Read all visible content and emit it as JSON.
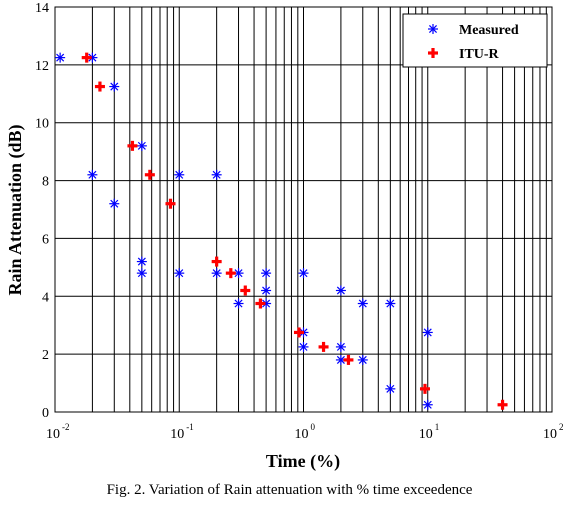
{
  "chart_data": {
    "type": "scatter",
    "xlabel": "Time (%)",
    "ylabel": "Rain Attenuation (dB)",
    "xscale": "log",
    "xlim": [
      0.01,
      100
    ],
    "ylim": [
      0,
      14
    ],
    "grid": true,
    "legend_position": "top-right",
    "x_ticks": [
      {
        "base": "10",
        "exp": "-2"
      },
      {
        "base": "10",
        "exp": "-1"
      },
      {
        "base": "10",
        "exp": "0"
      },
      {
        "base": "10",
        "exp": "1"
      },
      {
        "base": "10",
        "exp": "2"
      }
    ],
    "x_tick_values": [
      0.01,
      0.1,
      1,
      10,
      100
    ],
    "y_ticks": [
      "0",
      "2",
      "4",
      "6",
      "8",
      "10",
      "12",
      "14"
    ],
    "y_tick_values": [
      0,
      2,
      4,
      6,
      8,
      10,
      12,
      14
    ],
    "series": [
      {
        "name": "Measured",
        "marker": "asterisk",
        "color": "#0000ff",
        "points": [
          [
            0.011,
            12.25
          ],
          [
            0.02,
            12.25
          ],
          [
            0.03,
            11.25
          ],
          [
            0.02,
            8.2
          ],
          [
            0.03,
            7.2
          ],
          [
            0.05,
            9.2
          ],
          [
            0.05,
            5.2
          ],
          [
            0.05,
            4.8
          ],
          [
            0.1,
            8.2
          ],
          [
            0.1,
            4.8
          ],
          [
            0.2,
            8.2
          ],
          [
            0.2,
            4.8
          ],
          [
            0.3,
            4.8
          ],
          [
            0.3,
            3.75
          ],
          [
            0.5,
            4.8
          ],
          [
            0.5,
            4.2
          ],
          [
            0.5,
            3.75
          ],
          [
            1.0,
            4.8
          ],
          [
            1.0,
            2.75
          ],
          [
            1.0,
            2.25
          ],
          [
            2.0,
            4.2
          ],
          [
            2.0,
            2.25
          ],
          [
            2.0,
            1.8
          ],
          [
            3.0,
            3.75
          ],
          [
            3.0,
            1.8
          ],
          [
            5.0,
            3.75
          ],
          [
            5.0,
            0.8
          ],
          [
            10.0,
            2.75
          ],
          [
            10.0,
            0.25
          ]
        ]
      },
      {
        "name": "ITU-R",
        "marker": "plus",
        "color": "#ff0000",
        "points": [
          [
            0.018,
            12.25
          ],
          [
            0.023,
            11.25
          ],
          [
            0.042,
            9.2
          ],
          [
            0.058,
            8.2
          ],
          [
            0.085,
            7.2
          ],
          [
            0.2,
            5.2
          ],
          [
            0.26,
            4.8
          ],
          [
            0.34,
            4.2
          ],
          [
            0.45,
            3.75
          ],
          [
            0.92,
            2.75
          ],
          [
            1.45,
            2.25
          ],
          [
            2.3,
            1.8
          ],
          [
            9.5,
            0.8
          ],
          [
            40.0,
            0.25
          ]
        ]
      }
    ]
  },
  "caption": "Fig. 2. Variation of Rain attenuation with % time exceedence"
}
